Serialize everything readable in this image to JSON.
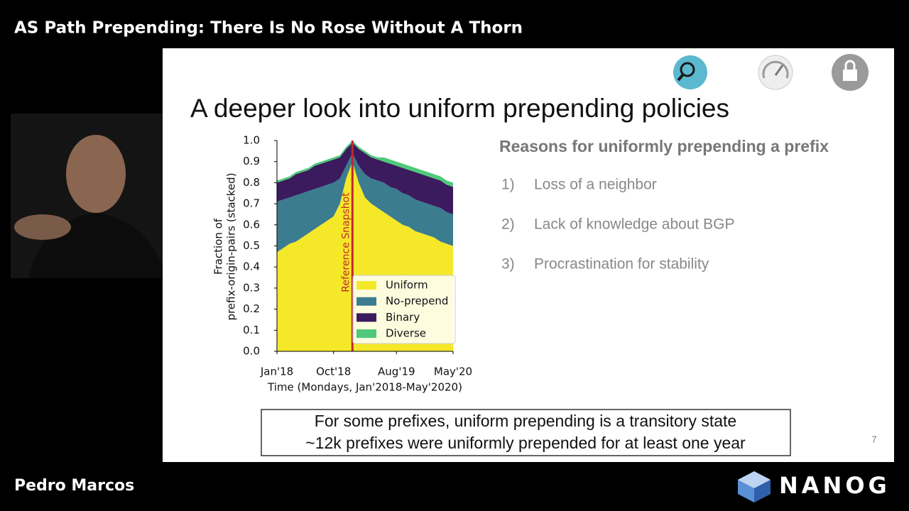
{
  "header": {
    "title": "AS Path Prepending: There Is No Rose Without A Thorn"
  },
  "slide": {
    "title": "A deeper look into uniform prepending policies",
    "reasons": {
      "heading": "Reasons for uniformly prepending a prefix",
      "items": [
        {
          "number": "1)",
          "text": "Loss of a neighbor"
        },
        {
          "number": "2)",
          "text": "Lack of knowledge about BGP"
        },
        {
          "number": "3)",
          "text": "Procrastination for stability"
        }
      ]
    },
    "callout": [
      "For some prefixes, uniform prepending is a transitory state",
      "~12k prefixes were uniformly prepended for at least one year"
    ],
    "page_number": 7
  },
  "chart_data": {
    "type": "stacked-area",
    "ylabel": [
      "Fraction of",
      "prefix-origin-pairs (stacked)"
    ],
    "xlabel": "Time (Mondays, Jan'2018-May'2020)",
    "annotation": "Reference Snapshot",
    "categories": [
      "Jan'18",
      null,
      null,
      null,
      null,
      null,
      null,
      null,
      null,
      "Oct'18",
      null,
      null,
      null,
      null,
      null,
      null,
      null,
      null,
      null,
      "Aug'19",
      null,
      null,
      null,
      null,
      null,
      null,
      null,
      null,
      "May'20"
    ],
    "series": [
      {
        "name": "Uniform",
        "color": "#f5e829",
        "values": [
          0.47,
          0.49,
          0.51,
          0.52,
          0.54,
          0.56,
          0.58,
          0.6,
          0.62,
          0.64,
          0.7,
          0.82,
          0.9,
          0.8,
          0.73,
          0.7,
          0.68,
          0.66,
          0.64,
          0.62,
          0.6,
          0.59,
          0.57,
          0.56,
          0.55,
          0.54,
          0.52,
          0.51,
          0.5
        ]
      },
      {
        "name": "No-prepend",
        "color": "#3b7c8e",
        "values": [
          0.24,
          0.23,
          0.22,
          0.22,
          0.21,
          0.2,
          0.19,
          0.18,
          0.17,
          0.16,
          0.12,
          0.06,
          0.04,
          0.08,
          0.11,
          0.12,
          0.13,
          0.14,
          0.14,
          0.15,
          0.15,
          0.15,
          0.15,
          0.15,
          0.15,
          0.15,
          0.16,
          0.15,
          0.15
        ]
      },
      {
        "name": "Binary",
        "color": "#3b1a5e",
        "values": [
          0.09,
          0.09,
          0.09,
          0.1,
          0.1,
          0.1,
          0.11,
          0.11,
          0.11,
          0.11,
          0.1,
          0.08,
          0.05,
          0.08,
          0.1,
          0.1,
          0.1,
          0.1,
          0.11,
          0.11,
          0.12,
          0.12,
          0.13,
          0.13,
          0.13,
          0.13,
          0.13,
          0.13,
          0.13
        ]
      },
      {
        "name": "Diverse",
        "color": "#4ec97a",
        "values": [
          0.01,
          0.01,
          0.01,
          0.01,
          0.01,
          0.01,
          0.01,
          0.01,
          0.01,
          0.01,
          0.01,
          0.01,
          0.01,
          0.01,
          0.01,
          0.01,
          0.01,
          0.02,
          0.02,
          0.02,
          0.02,
          0.02,
          0.02,
          0.02,
          0.02,
          0.02,
          0.02,
          0.02,
          0.02
        ]
      }
    ],
    "ylim": [
      0,
      1
    ],
    "yticks": [
      {
        "value": 0,
        "label": "0.0"
      },
      0.1,
      0.2,
      0.3,
      0.4,
      0.5,
      0.6,
      0.7,
      0.8,
      0.9,
      {
        "value": 1,
        "label": "1.0"
      }
    ],
    "legend": "lower right"
  },
  "footer": {
    "speaker": "Pedro Marcos",
    "logo": "NANOG"
  }
}
